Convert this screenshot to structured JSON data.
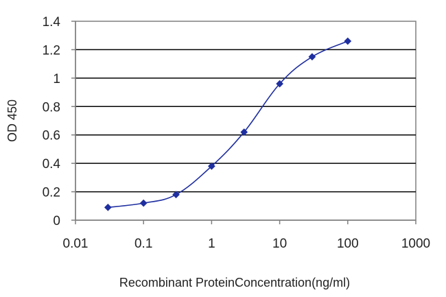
{
  "chart_data": {
    "type": "line",
    "title": "",
    "xlabel": "Recombinant ProteinConcentration(ng/ml)",
    "ylabel": "OD 450",
    "x_scale": "log10",
    "xlim": [
      0.01,
      1000
    ],
    "ylim": [
      0,
      1.4
    ],
    "x_ticks": [
      0.01,
      0.1,
      1,
      10,
      100,
      1000
    ],
    "x_tick_labels": [
      "0.01",
      "0.1",
      "1",
      "10",
      "100",
      "1000"
    ],
    "y_ticks": [
      0,
      0.2,
      0.4,
      0.6,
      0.8,
      1,
      1.2,
      1.4
    ],
    "y_tick_labels": [
      "0",
      "0.2",
      "0.4",
      "0.6",
      "0.8",
      "1",
      "1.2",
      "1.4"
    ],
    "grid": "horizontal",
    "legend": "none",
    "series": [
      {
        "color": "#1f2fa0",
        "marker": "diamond",
        "x": [
          0.03,
          0.1,
          0.3,
          1,
          3,
          10,
          30,
          100
        ],
        "y": [
          0.09,
          0.12,
          0.18,
          0.38,
          0.62,
          0.96,
          1.15,
          1.26
        ]
      }
    ]
  }
}
